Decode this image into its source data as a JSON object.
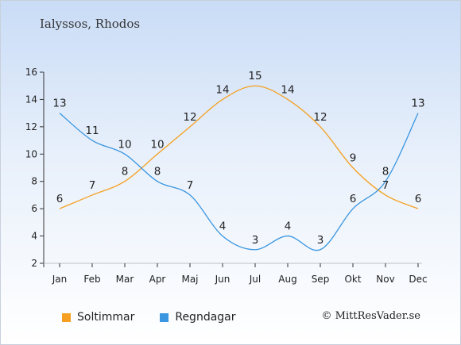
{
  "title": "Ialyssos, Rhodos",
  "credit": "© MittResVader.se",
  "chart_data": {
    "type": "line",
    "categories": [
      "Jan",
      "Feb",
      "Mar",
      "Apr",
      "Maj",
      "Jun",
      "Jul",
      "Aug",
      "Sep",
      "Okt",
      "Nov",
      "Dec"
    ],
    "ylim": [
      2,
      16
    ],
    "yticks": [
      2,
      4,
      6,
      8,
      10,
      12,
      14,
      16
    ],
    "grid": false,
    "legend_position": "bottom-left",
    "series": [
      {
        "name": "Soltimmar",
        "color": "#f5a020",
        "values": [
          6,
          7,
          8,
          10,
          12,
          14,
          15,
          14,
          12,
          9,
          7,
          6
        ]
      },
      {
        "name": "Regndagar",
        "color": "#3a96e0",
        "values": [
          13,
          11,
          10,
          8,
          7,
          4,
          3,
          4,
          3,
          6,
          8,
          13
        ]
      }
    ]
  }
}
